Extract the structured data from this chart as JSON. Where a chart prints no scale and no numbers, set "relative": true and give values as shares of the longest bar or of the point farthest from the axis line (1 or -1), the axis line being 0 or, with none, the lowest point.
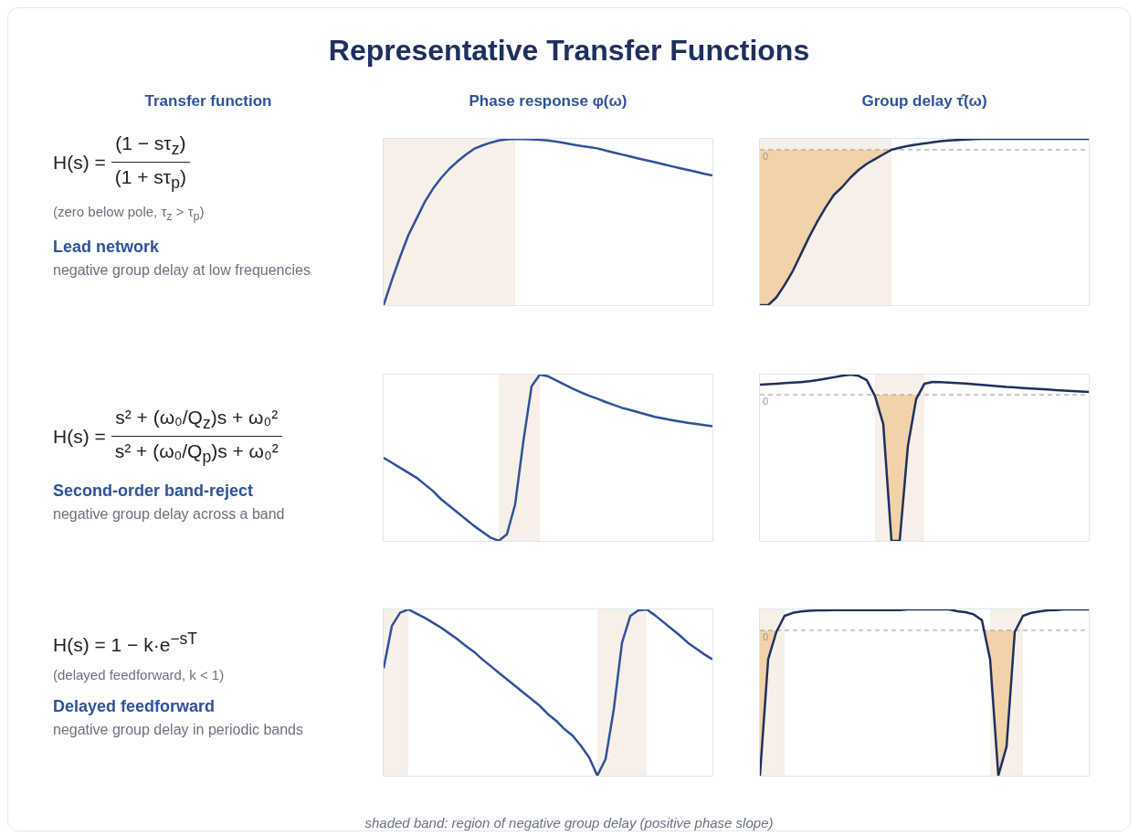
{
  "chart_data": [
    {
      "type": "other",
      "title": "Representative Transfer Functions"
    },
    {
      "type": "other",
      "title": "Transfer function",
      "annotations": [
        "H(s) =",
        "(1 − sτ$_{z}$)",
        "(1 + sτ$_{p}$)",
        "(zero below pole, τ$_{z}$ > τ$_{p}$)",
        "Lead network",
        "negative group delay at low frequencies"
      ]
    },
    {
      "type": "line",
      "title": "Phase response φ(ω)",
      "relative": true,
      "tick_labels": false,
      "categories": [
        null,
        null,
        null,
        null,
        null,
        null,
        null,
        null,
        null,
        null,
        null,
        null,
        null,
        null,
        null,
        null,
        null,
        null,
        null,
        null,
        null,
        null,
        null,
        null,
        null,
        null,
        null,
        null,
        null,
        null,
        null,
        null,
        null,
        null,
        null,
        null,
        null,
        null,
        null,
        null,
        null
      ],
      "series": [
        {
          "color": "#2f529a",
          "values": [
            0,
            0.15,
            0.29,
            0.42,
            0.52,
            0.62,
            0.7,
            0.765,
            0.82,
            0.865,
            0.905,
            0.94,
            0.96,
            0.977,
            0.99,
            0.997,
            1,
            0.999,
            0.997,
            0.994,
            0.99,
            0.984,
            0.975,
            0.966,
            0.958,
            0.95,
            0.943,
            0.93,
            0.918,
            0.906,
            0.894,
            0.882,
            0.871,
            0.86,
            0.848,
            0.836,
            0.824,
            0.813,
            0.802,
            0.79,
            0.78
          ]
        }
      ]
    },
    {
      "type": "line",
      "title": "Group delay τ̂(ω)",
      "relative": true,
      "tick_labels": false,
      "categories": [
        null,
        null,
        null,
        null,
        null,
        null,
        null,
        null,
        null,
        null,
        null,
        null,
        null,
        null,
        null,
        null,
        null,
        null,
        null,
        null,
        null,
        null,
        null,
        null,
        null,
        null,
        null,
        null,
        null,
        null,
        null,
        null,
        null,
        null,
        null,
        null,
        null,
        null,
        null,
        null,
        null
      ],
      "series": [
        {
          "color": "#1f3060",
          "values": [
            -1,
            -1,
            -0.95,
            -0.87,
            -0.78,
            -0.67,
            -0.56,
            -0.46,
            -0.37,
            -0.29,
            -0.24,
            -0.18,
            -0.13,
            -0.09,
            -0.06,
            -0.03,
            0,
            0.013,
            0.025,
            0.033,
            0.04,
            0.048,
            0.055,
            0.06,
            0.063,
            0.066,
            0.068,
            0.07,
            0.07,
            0.07,
            0.07,
            0.07,
            0.07,
            0.07,
            0.07,
            0.07,
            0.07,
            0.07,
            0.07,
            0.07,
            0.07
          ]
        }
      ],
      "ref_lines": [
        {
          "axis": "y",
          "value": 0,
          "label": "0",
          "color": "#999999",
          "line_style": "dashed"
        }
      ]
    },
    {
      "type": "other",
      "annotations": [
        "H(s) =",
        "s² + (ω₀/Q$_{z}$)s + ω₀²",
        "s² + (ω₀/Q$_{p}$)s + ω₀²",
        "Second-order band-reject",
        "negative group delay across a band"
      ]
    },
    {
      "type": "line",
      "relative": true,
      "tick_labels": false,
      "categories": [
        null,
        null,
        null,
        null,
        null,
        null,
        null,
        null,
        null,
        null,
        null,
        null,
        null,
        null,
        null,
        null,
        null,
        null,
        null,
        null,
        null,
        null,
        null,
        null,
        null,
        null,
        null,
        null,
        null,
        null,
        null,
        null,
        null,
        null,
        null,
        null,
        null,
        null,
        null,
        null,
        null
      ],
      "series": [
        {
          "color": "#2f529a",
          "values": [
            0.5,
            0.47,
            0.44,
            0.41,
            0.38,
            0.34,
            0.3,
            0.25,
            0.21,
            0.17,
            0.13,
            0.09,
            0.055,
            0.02,
            0,
            0.04,
            0.22,
            0.6,
            0.93,
            1,
            0.99,
            0.965,
            0.94,
            0.915,
            0.893,
            0.873,
            0.855,
            0.835,
            0.818,
            0.8,
            0.787,
            0.773,
            0.76,
            0.746,
            0.736,
            0.727,
            0.718,
            0.71,
            0.703,
            0.696,
            0.69
          ]
        }
      ]
    },
    {
      "type": "line",
      "relative": true,
      "tick_labels": false,
      "categories": [
        null,
        null,
        null,
        null,
        null,
        null,
        null,
        null,
        null,
        null,
        null,
        null,
        null,
        null,
        null,
        null,
        null,
        null,
        null,
        null,
        null,
        null,
        null,
        null,
        null,
        null,
        null,
        null,
        null,
        null,
        null,
        null,
        null,
        null,
        null,
        null,
        null,
        null,
        null,
        null,
        null
      ],
      "series": [
        {
          "color": "#1f3060",
          "values": [
            0.069,
            0.072,
            0.076,
            0.08,
            0.083,
            0.087,
            0.092,
            0.1,
            0.11,
            0.12,
            0.13,
            0.138,
            0.13,
            0.1,
            -0.01,
            -0.2,
            -1,
            -1,
            -0.35,
            -0.03,
            0.075,
            0.088,
            0.086,
            0.084,
            0.08,
            0.077,
            0.072,
            0.068,
            0.063,
            0.058,
            0.053,
            0.05,
            0.046,
            0.043,
            0.04,
            0.036,
            0.032,
            0.029,
            0.025,
            0.022,
            0.019
          ]
        }
      ],
      "ref_lines": [
        {
          "axis": "y",
          "value": 0,
          "label": "0",
          "color": "#999999",
          "line_style": "dashed"
        }
      ]
    },
    {
      "type": "other",
      "annotations": [
        "H(s) = 1 − k·e$^{−sT}$",
        "(delayed feedforward, k < 1)",
        "Delayed feedforward",
        "negative group delay in periodic bands"
      ]
    },
    {
      "type": "line",
      "relative": true,
      "tick_labels": false,
      "categories": [
        null,
        null,
        null,
        null,
        null,
        null,
        null,
        null,
        null,
        null,
        null,
        null,
        null,
        null,
        null,
        null,
        null,
        null,
        null,
        null,
        null,
        null,
        null,
        null,
        null,
        null,
        null,
        null,
        null,
        null,
        null,
        null,
        null,
        null,
        null,
        null,
        null,
        null,
        null,
        null,
        null
      ],
      "series": [
        {
          "color": "#2f529a",
          "values": [
            0.645,
            0.9,
            0.98,
            1,
            0.975,
            0.95,
            0.92,
            0.89,
            0.855,
            0.82,
            0.78,
            0.745,
            0.7,
            0.66,
            0.62,
            0.58,
            0.54,
            0.5,
            0.46,
            0.42,
            0.37,
            0.33,
            0.28,
            0.24,
            0.18,
            0.11,
            0,
            0.1,
            0.4,
            0.8,
            0.96,
            0.995,
            1,
            0.965,
            0.925,
            0.885,
            0.845,
            0.8,
            0.765,
            0.73,
            0.7
          ]
        }
      ]
    },
    {
      "type": "line",
      "relative": true,
      "tick_labels": false,
      "categories": [
        null,
        null,
        null,
        null,
        null,
        null,
        null,
        null,
        null,
        null,
        null,
        null,
        null,
        null,
        null,
        null,
        null,
        null,
        null,
        null,
        null,
        null,
        null,
        null,
        null,
        null,
        null,
        null,
        null,
        null,
        null,
        null,
        null,
        null,
        null,
        null,
        null,
        null,
        null,
        null,
        null
      ],
      "series": [
        {
          "color": "#1f3060",
          "values": [
            -1,
            -0.2,
            -0.01,
            0.1,
            0.12,
            0.13,
            0.134,
            0.137,
            0.138,
            0.14,
            0.14,
            0.14,
            0.14,
            0.14,
            0.14,
            0.14,
            0.14,
            0.14,
            0.144,
            0.144,
            0.144,
            0.144,
            0.144,
            0.144,
            0.132,
            0.125,
            0.11,
            0.07,
            -0.2,
            -1,
            -0.8,
            -0.01,
            0.1,
            0.12,
            0.13,
            0.137,
            0.14,
            0.144,
            0.144,
            0.144,
            0.144
          ]
        }
      ],
      "ref_lines": [
        {
          "axis": "y",
          "value": 0,
          "label": "0",
          "color": "#999999",
          "line_style": "dashed"
        }
      ]
    },
    {
      "type": "other",
      "annotations": [
        "shaded band: region of negative group delay (positive phase slope)"
      ]
    }
  ]
}
